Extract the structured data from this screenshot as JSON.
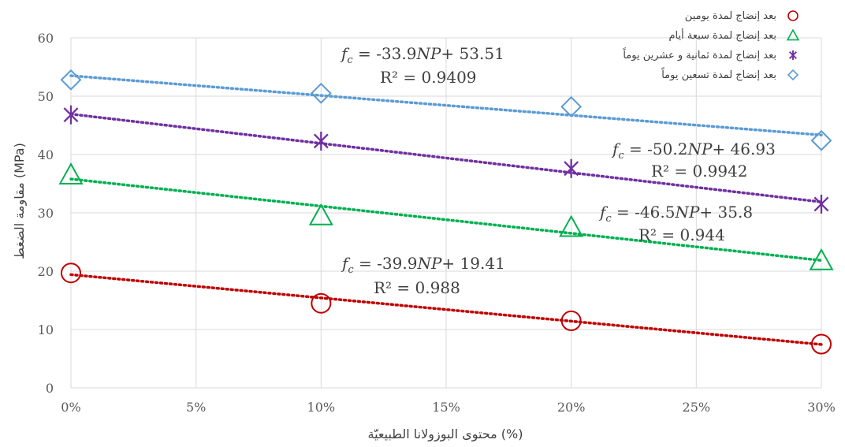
{
  "chart_data": {
    "type": "scatter",
    "xlabel": "محتوى البوزولانا الطبيعيّة (%)",
    "ylabel": "مقاومة الضغط (MPa)",
    "x_ticks": [
      "0%",
      "5%",
      "10%",
      "15%",
      "20%",
      "25%",
      "30%"
    ],
    "y_ticks": [
      "0",
      "10",
      "20",
      "30",
      "40",
      "50",
      "60"
    ],
    "xlim": [
      0,
      0.3
    ],
    "ylim": [
      0,
      60
    ],
    "grid": true,
    "legend_position": "top-right",
    "x": [
      0,
      0.1,
      0.2,
      0.3
    ],
    "series": [
      {
        "name": "بعد إنضاج لمدة يومين",
        "marker": "circle",
        "color": "#c00000",
        "values": [
          19.7,
          14.5,
          11.5,
          7.5
        ],
        "trend": {
          "slope": -39.9,
          "intercept": 19.41
        },
        "equation": {
          "prefix": " = -39.9",
          "var": "NP",
          "suffix": "+ 19.41"
        },
        "r2": "R² = 0.988"
      },
      {
        "name": "بعد إنضاج لمدة سبعة أيام",
        "marker": "triangle",
        "color": "#00b050",
        "values": [
          36.5,
          29.5,
          27.5,
          21.8
        ],
        "trend": {
          "slope": -46.5,
          "intercept": 35.8
        },
        "equation": {
          "prefix": " = -46.5",
          "var": "NP",
          "suffix": "+ 35.8"
        },
        "r2": "R² = 0.944"
      },
      {
        "name": "بعد إنضاج لمدة ثمانية و عشرين يوماً",
        "marker": "asterisk",
        "color": "#7030a0",
        "values": [
          46.8,
          42.3,
          37.6,
          31.5
        ],
        "trend": {
          "slope": -50.2,
          "intercept": 46.93
        },
        "equation": {
          "prefix": " = -50.2",
          "var": "NP",
          "suffix": "+ 46.93"
        },
        "r2": "R² = 0.9942"
      },
      {
        "name": "بعد إنضاج لمدة تسعين يوماً",
        "marker": "diamond",
        "color": "#5b9bd5",
        "values": [
          52.8,
          50.5,
          48.2,
          42.4
        ],
        "trend": {
          "slope": -33.9,
          "intercept": 53.51
        },
        "equation": {
          "prefix": " = -33.9",
          "var": "NP",
          "suffix": "+ 53.51"
        },
        "r2": "R² = 0.9409"
      }
    ]
  }
}
